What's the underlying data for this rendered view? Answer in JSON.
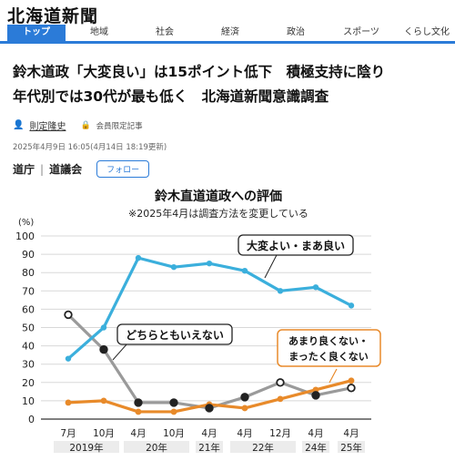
{
  "site": {
    "logo": "北海道新聞"
  },
  "nav": {
    "items": [
      "トップ",
      "地域",
      "社会",
      "経済",
      "政治",
      "スポーツ",
      "くらし文化"
    ]
  },
  "article": {
    "headline_line1": "鈴木道政「大変良い」は15ポイント低下　積極支持に陰り",
    "headline_line2": "年代別では30代が最も低く　北海道新聞意識調査",
    "author": "則定隆史",
    "members_label": "会員限定記事",
    "date": "2025年4月9日 16:05(4月14日 18:19更新)",
    "section_1": "道庁",
    "section_sep": "|",
    "section_2": "道議会",
    "follow_label": "フォロー"
  },
  "chart_data": {
    "type": "line",
    "title": "鈴木直道道政への評価",
    "subtitle": "※2025年4月は調査方法を変更している",
    "ylabel": "(%)",
    "ylim": [
      0,
      100
    ],
    "yticks": [
      0,
      10,
      20,
      30,
      40,
      50,
      60,
      70,
      80,
      90,
      100
    ],
    "x_month_labels": [
      "7月",
      "10月",
      "4月",
      "10月",
      "4月",
      "4月",
      "12月",
      "4月",
      "4月"
    ],
    "x_year_labels": [
      "2019年",
      "20年",
      "21年",
      "22年",
      "24年",
      "25年"
    ],
    "series": [
      {
        "name": "大変よい・まあ良い",
        "color": "#3bafdc",
        "values": [
          33,
          50,
          88,
          83,
          85,
          81,
          70,
          72,
          62
        ]
      },
      {
        "name": "どちらともいえない",
        "color": "#9a9a9a",
        "values": [
          57,
          38,
          9,
          9,
          6,
          12,
          20,
          13,
          17
        ]
      },
      {
        "name": "あまり良くない・まったく良くない",
        "color": "#e88a2a",
        "values": [
          9,
          10,
          4,
          4,
          8,
          6,
          11,
          16,
          21
        ]
      }
    ],
    "label_line1_series2": "あまり良くない・",
    "label_line2_series2": "まったく良くない"
  }
}
